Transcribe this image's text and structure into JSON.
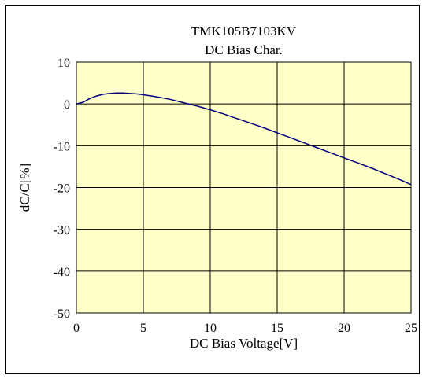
{
  "chart_data": {
    "type": "line",
    "title": "TMK105B7103KV",
    "subtitle": "DC Bias Char.",
    "xlabel": "DC Bias Voltage[V]",
    "ylabel": "dC/C[%]",
    "xlim": [
      0,
      25
    ],
    "ylim": [
      -50,
      10
    ],
    "xticks": [
      "0",
      "5",
      "10",
      "15",
      "20",
      "25"
    ],
    "yticks": [
      "10",
      "0",
      "-10",
      "-20",
      "-30",
      "-40",
      "-50"
    ],
    "grid": true,
    "legend": "none",
    "colors": {
      "plot_background": "#FFFFC8",
      "line": "#00007F",
      "grid": "#000000"
    },
    "series": [
      {
        "x": [
          0,
          0.5,
          1,
          1.5,
          2,
          2.5,
          3,
          3.5,
          4,
          4.5,
          5,
          6,
          7,
          8,
          9,
          10,
          11,
          12,
          13,
          14,
          15,
          16,
          17,
          18,
          19,
          20,
          21,
          22,
          23,
          24,
          25
        ],
        "y": [
          0,
          0.4,
          1.3,
          1.9,
          2.3,
          2.5,
          2.6,
          2.6,
          2.5,
          2.4,
          2.2,
          1.7,
          1.1,
          0.3,
          -0.5,
          -1.4,
          -2.4,
          -3.5,
          -4.6,
          -5.7,
          -6.9,
          -8.1,
          -9.3,
          -10.5,
          -11.7,
          -12.9,
          -14.1,
          -15.3,
          -16.6,
          -17.9,
          -19.3
        ]
      }
    ]
  }
}
